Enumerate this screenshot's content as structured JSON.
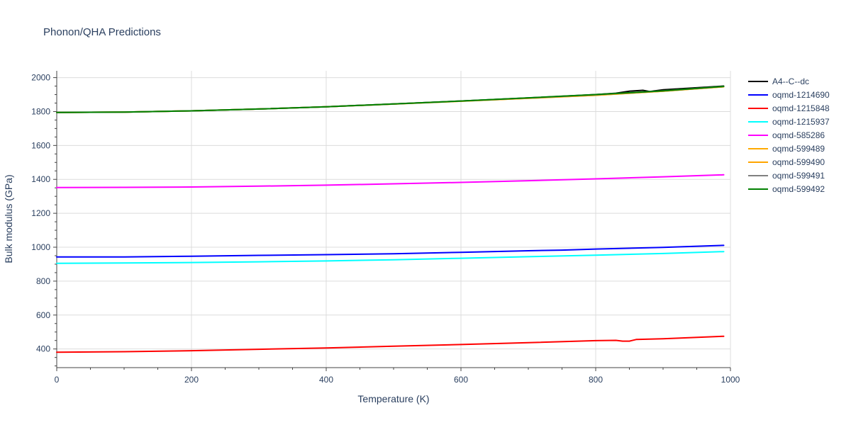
{
  "chart_data": {
    "type": "line",
    "title": "Phonon/QHA Predictions",
    "xlabel": "Temperature (K)",
    "ylabel": "Bulk modulus (GPa)",
    "xlim": [
      0,
      1000
    ],
    "ylim": [
      290,
      2040
    ],
    "xticks": [
      0,
      200,
      400,
      600,
      800,
      1000
    ],
    "yticks": [
      400,
      600,
      800,
      1000,
      1200,
      1400,
      1600,
      1800,
      2000
    ],
    "grid": true,
    "legend_position": "top-right",
    "series": [
      {
        "name": "A4--C--dc",
        "color": "#000000",
        "x": [
          0,
          100,
          200,
          300,
          400,
          500,
          600,
          700,
          800,
          830,
          850,
          870,
          880,
          900,
          990
        ],
        "y": [
          1795,
          1797,
          1804,
          1815,
          1828,
          1845,
          1862,
          1880,
          1900,
          1908,
          1920,
          1925,
          1918,
          1928,
          1950
        ]
      },
      {
        "name": "oqmd-1214690",
        "color": "#0000ff",
        "x": [
          0,
          100,
          200,
          300,
          400,
          500,
          600,
          700,
          750,
          800,
          900,
          990
        ],
        "y": [
          943,
          943,
          947,
          952,
          956,
          961,
          970,
          979,
          983,
          989,
          999,
          1011
        ]
      },
      {
        "name": "oqmd-1215848",
        "color": "#ff0000",
        "x": [
          0,
          100,
          200,
          300,
          400,
          500,
          600,
          700,
          800,
          830,
          840,
          850,
          860,
          900,
          990
        ],
        "y": [
          381,
          384,
          390,
          398,
          406,
          416,
          426,
          437,
          449,
          451,
          446,
          446,
          456,
          460,
          475
        ]
      },
      {
        "name": "oqmd-1215937",
        "color": "#00ffff",
        "x": [
          0,
          100,
          200,
          300,
          400,
          500,
          600,
          700,
          800,
          900,
          990
        ],
        "y": [
          905,
          907,
          910,
          914,
          919,
          926,
          935,
          944,
          953,
          963,
          974
        ]
      },
      {
        "name": "oqmd-585286",
        "color": "#ff00ff",
        "x": [
          0,
          100,
          200,
          300,
          400,
          500,
          600,
          700,
          800,
          900,
          990
        ],
        "y": [
          1352,
          1353,
          1355,
          1360,
          1366,
          1374,
          1382,
          1392,
          1403,
          1415,
          1427
        ]
      },
      {
        "name": "oqmd-599489",
        "color": "#ffaa00",
        "x": [
          0,
          100,
          200,
          300,
          400,
          500,
          600,
          700,
          800,
          900,
          990
        ],
        "y": [
          1795,
          1797,
          1804,
          1815,
          1828,
          1844,
          1861,
          1878,
          1896,
          1920,
          1946
        ]
      },
      {
        "name": "oqmd-599490",
        "color": "#ffa500",
        "x": [
          0,
          100,
          200,
          300,
          400,
          500,
          600,
          700,
          800,
          900,
          990
        ],
        "y": [
          1795,
          1797,
          1804,
          1815,
          1828,
          1844,
          1861,
          1878,
          1896,
          1920,
          1946
        ]
      },
      {
        "name": "oqmd-599491",
        "color": "#808080",
        "x": [
          0,
          100,
          200,
          300,
          400,
          500,
          600,
          700,
          800,
          900,
          990
        ],
        "y": [
          1795,
          1797,
          1804,
          1815,
          1828,
          1845,
          1862,
          1880,
          1899,
          1922,
          1948
        ]
      },
      {
        "name": "oqmd-599492",
        "color": "#008000",
        "x": [
          0,
          100,
          200,
          300,
          400,
          500,
          600,
          700,
          800,
          900,
          990
        ],
        "y": [
          1795,
          1797,
          1804,
          1815,
          1828,
          1845,
          1862,
          1881,
          1900,
          1922,
          1948
        ]
      }
    ]
  }
}
